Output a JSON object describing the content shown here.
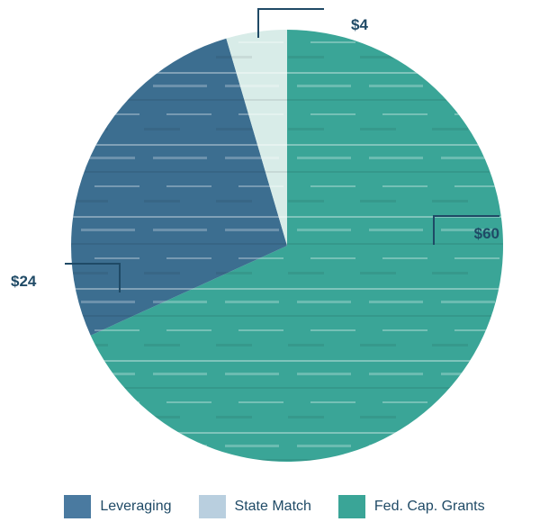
{
  "chart_data": {
    "type": "pie",
    "slices": [
      {
        "label": "Fed. Cap. Grants",
        "value": 60,
        "value_label": "$60",
        "color": "#3aa597"
      },
      {
        "label": "Leveraging",
        "value": 24,
        "value_label": "$24",
        "color": "#3c6e90"
      },
      {
        "label": "State Match",
        "value": 4,
        "value_label": "$4",
        "color": "#d8ece8"
      }
    ],
    "legend": {
      "placement": "bottom",
      "items": [
        {
          "label": "Leveraging",
          "color": "#4a7aa0"
        },
        {
          "label": "State Match",
          "color": "#b9cfdf"
        },
        {
          "label": "Fed. Cap. Grants",
          "color": "#3aa597"
        }
      ]
    }
  }
}
